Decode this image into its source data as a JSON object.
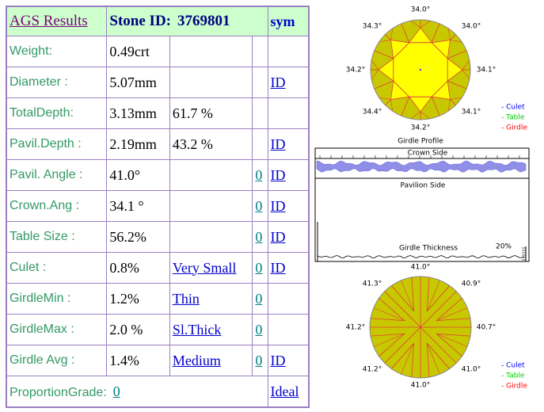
{
  "table": {
    "header": {
      "title": "AGS Results",
      "stone_id_label": "Stone ID:",
      "stone_id": "3769801",
      "sym": "sym"
    },
    "rows": [
      {
        "label": "Weight:",
        "value": "0.49crt"
      },
      {
        "label": "Diameter :",
        "value": "5.07mm",
        "id": "ID"
      },
      {
        "label": "TotalDepth:",
        "value": "3.13mm",
        "percent": "61.7 %"
      },
      {
        "label": "Pavil.Depth :",
        "value": "2.19mm",
        "percent": "43.2 %",
        "id": "ID"
      },
      {
        "label": "Pavil. Angle :",
        "value": "41.0°",
        "sym": "0",
        "id": "ID"
      },
      {
        "label": "Crown.Ang :",
        "value": "34.1 °",
        "sym": "0",
        "id": "ID"
      },
      {
        "label": "Table Size :",
        "value": "56.2%",
        "sym": "0",
        "id": "ID"
      },
      {
        "label": "Culet :",
        "value": "0.8%",
        "grade": "Very Small",
        "sym": "0",
        "id": "ID"
      },
      {
        "label": "GirdleMin :",
        "value": "1.2%",
        "grade": "Thin",
        "sym": "0"
      },
      {
        "label": "GirdleMax :",
        "value": "2.0 %",
        "grade": "Sl.Thick",
        "sym": "0"
      },
      {
        "label": "Girdle Avg :",
        "value": "1.4%",
        "grade": "Medium",
        "sym": "0",
        "id": "ID"
      }
    ],
    "proportion_grade": {
      "label": "ProportionGrade:",
      "value": "0",
      "grade": "Ideal"
    }
  },
  "crown_diagram": {
    "angles": [
      "34.0°",
      "34.0°",
      "34.1°",
      "34.1°",
      "34.2°",
      "34.4°",
      "34.2°",
      "34.3°"
    ],
    "legend": [
      "- Culet",
      "- Table",
      "- Girdle"
    ]
  },
  "girdle_profile": {
    "title": "Girdle Profile",
    "crown_side": "Crown Side",
    "pavilion_side": "Pavilion Side",
    "thickness": "Girdle Thickness",
    "percent": "20%"
  },
  "pavilion_diagram": {
    "angles": [
      "41.0°",
      "40.9°",
      "40.7°",
      "41.0°",
      "41.0°",
      "41.2°",
      "41.2°",
      "41.3°"
    ],
    "legend": [
      "- Culet",
      "- Table",
      "- Girdle"
    ]
  }
}
